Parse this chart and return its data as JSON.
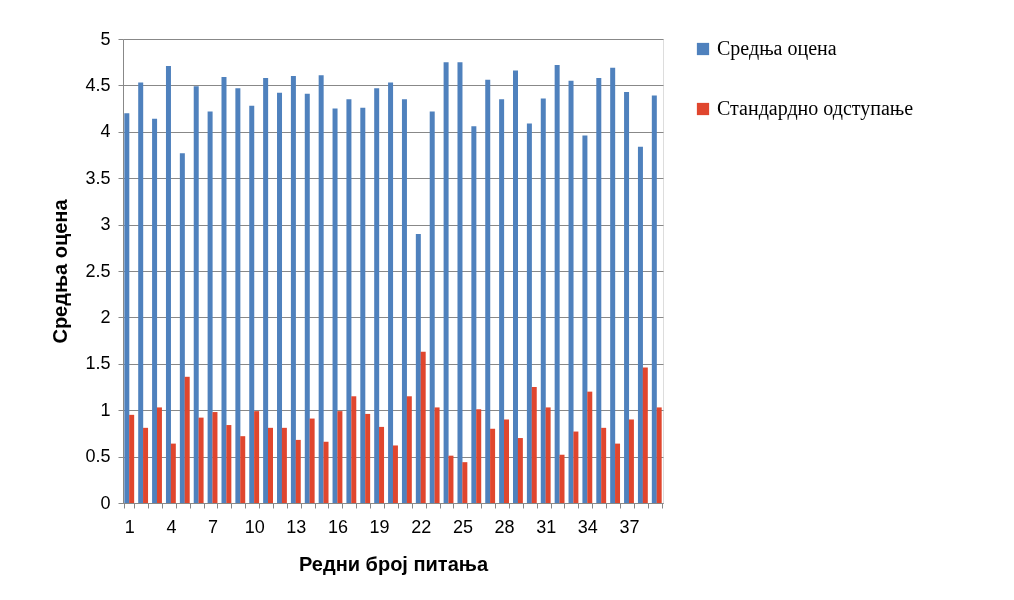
{
  "chart_data": {
    "type": "bar",
    "xlabel": "Редни број питања",
    "ylabel": "Средња оцена",
    "categories": [
      "1",
      null,
      null,
      "4",
      null,
      null,
      "7",
      null,
      null,
      "10",
      null,
      null,
      "13",
      null,
      null,
      "16",
      null,
      null,
      "19",
      null,
      null,
      "22",
      null,
      null,
      "25",
      null,
      null,
      "28",
      null,
      null,
      "31",
      null,
      null,
      "34",
      null,
      null,
      "37",
      null,
      null
    ],
    "series": [
      {
        "name": "Средња оцена",
        "color": "#4f81bd",
        "values": [
          4.2,
          4.53,
          4.14,
          4.71,
          3.77,
          4.49,
          4.22,
          4.59,
          4.47,
          4.28,
          4.58,
          4.42,
          4.6,
          4.41,
          4.61,
          4.25,
          4.35,
          4.26,
          4.47,
          4.53,
          4.35,
          2.9,
          4.22,
          4.75,
          4.75,
          4.06,
          4.56,
          4.35,
          4.66,
          4.09,
          4.36,
          4.72,
          4.55,
          3.96,
          4.58,
          4.69,
          4.43,
          3.84,
          4.39
        ]
      },
      {
        "name": "Стандардно одступање",
        "color": "#e0462e",
        "values": [
          0.95,
          0.81,
          1.03,
          0.64,
          1.36,
          0.92,
          0.98,
          0.84,
          0.72,
          0.99,
          0.81,
          0.81,
          0.68,
          0.91,
          0.66,
          0.99,
          1.15,
          0.96,
          0.82,
          0.62,
          1.15,
          1.63,
          1.03,
          0.51,
          0.44,
          1.01,
          0.8,
          0.9,
          0.7,
          1.25,
          1.03,
          0.52,
          0.77,
          1.2,
          0.81,
          0.64,
          0.9,
          1.46,
          1.03
        ]
      }
    ],
    "ylim": [
      0,
      5
    ],
    "yticks": [
      0,
      0.5,
      1,
      1.5,
      2,
      2.5,
      3,
      3.5,
      4,
      4.5,
      5
    ],
    "grid": "y",
    "legend": "right"
  }
}
